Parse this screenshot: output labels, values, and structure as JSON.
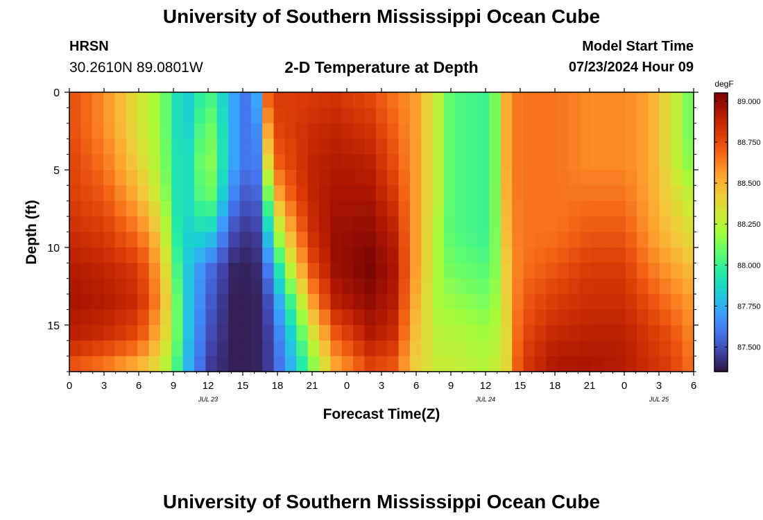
{
  "header": {
    "title": "University of Southern Mississippi Ocean Cube",
    "station": "HRSN",
    "coords": "30.2610N  89.0801W",
    "plot_title": "2-D Temperature at Depth",
    "start_label": "Model Start Time",
    "start_value": "07/23/2024 Hour 09"
  },
  "footer": {
    "title": "University of Southern Mississippi Ocean Cube"
  },
  "colors": {
    "colormap": [
      "#30123b",
      "#4145ab",
      "#4675ed",
      "#39a2fc",
      "#1bcfd4",
      "#24eca6",
      "#61fc6c",
      "#a4fc3b",
      "#d1e834",
      "#f3c63a",
      "#fe9b2d",
      "#f36315",
      "#d93806",
      "#b11901",
      "#7a0403"
    ]
  },
  "chart_data": {
    "type": "heatmap",
    "title": "2-D Temperature at Depth",
    "xlabel": "Forecast Time(Z)",
    "ylabel": "Depth (ft)",
    "x_ticks": [
      "0",
      "3",
      "6",
      "9",
      "12",
      "15",
      "18",
      "21",
      "0",
      "3",
      "6",
      "9",
      "12",
      "15",
      "18",
      "21",
      "0",
      "3",
      "6"
    ],
    "date_labels": [
      {
        "label": "JUL 23",
        "hour": 12
      },
      {
        "label": "JUL 24",
        "hour": 36
      },
      {
        "label": "JUL 25",
        "hour": 51
      }
    ],
    "x_range": [
      0,
      54
    ],
    "y_ticks": [
      "0",
      "5",
      "10",
      "15"
    ],
    "y_range": [
      0,
      18
    ],
    "colorbar": {
      "unit": "degF",
      "range": [
        87.35,
        89.05
      ],
      "ticks": [
        "89.000",
        "88.750",
        "88.500",
        "88.250",
        "88.000",
        "87.750",
        "87.500"
      ]
    },
    "depth_profiles": [
      {
        "hour": 0,
        "values": [
          88.75,
          88.75,
          88.78,
          88.8,
          88.85,
          88.92,
          88.95,
          88.9,
          88.7
        ]
      },
      {
        "hour": 3,
        "values": [
          88.6,
          88.6,
          88.65,
          88.72,
          88.8,
          88.88,
          88.92,
          88.85,
          88.6
        ]
      },
      {
        "hour": 6,
        "values": [
          88.35,
          88.35,
          88.4,
          88.5,
          88.65,
          88.8,
          88.85,
          88.75,
          88.45
        ]
      },
      {
        "hour": 8,
        "values": [
          88.15,
          88.15,
          88.18,
          88.25,
          88.4,
          88.5,
          88.55,
          88.45,
          88.3
        ]
      },
      {
        "hour": 9,
        "values": [
          87.95,
          87.95,
          87.95,
          87.95,
          88.0,
          88.1,
          88.2,
          88.2,
          88.1
        ]
      },
      {
        "hour": 10,
        "values": [
          87.8,
          87.8,
          87.85,
          87.85,
          87.85,
          87.85,
          87.85,
          87.85,
          87.8
        ]
      },
      {
        "hour": 12,
        "values": [
          88.05,
          88.15,
          88.2,
          88.15,
          87.9,
          87.6,
          87.55,
          87.5,
          87.45
        ]
      },
      {
        "hour": 14,
        "values": [
          87.75,
          87.75,
          87.75,
          87.65,
          87.5,
          87.4,
          87.38,
          87.38,
          87.38
        ]
      },
      {
        "hour": 16,
        "values": [
          87.5,
          87.5,
          87.5,
          87.45,
          87.4,
          87.38,
          87.38,
          87.38,
          87.38
        ]
      },
      {
        "hour": 16.5,
        "values": [
          88.1,
          87.9,
          87.8,
          87.7,
          87.55,
          87.45,
          87.4,
          87.4,
          87.4
        ]
      },
      {
        "hour": 17,
        "values": [
          88.7,
          88.5,
          88.3,
          88.0,
          87.75,
          87.55,
          87.45,
          87.42,
          87.42
        ]
      },
      {
        "hour": 18,
        "values": [
          88.8,
          88.78,
          88.7,
          88.5,
          88.2,
          87.9,
          87.7,
          87.6,
          87.55
        ]
      },
      {
        "hour": 19.5,
        "values": [
          88.8,
          88.8,
          88.8,
          88.75,
          88.6,
          88.4,
          88.1,
          87.9,
          87.8
        ]
      },
      {
        "hour": 21,
        "values": [
          88.8,
          88.85,
          88.88,
          88.88,
          88.85,
          88.75,
          88.55,
          88.3,
          88.1
        ]
      },
      {
        "hour": 23,
        "values": [
          88.82,
          88.88,
          88.92,
          88.95,
          88.98,
          88.98,
          88.9,
          88.7,
          88.5
        ]
      },
      {
        "hour": 26,
        "values": [
          88.75,
          88.82,
          88.9,
          88.95,
          89.0,
          89.05,
          89.0,
          88.92,
          88.75
        ]
      },
      {
        "hour": 28,
        "values": [
          88.65,
          88.7,
          88.75,
          88.82,
          88.9,
          88.95,
          88.92,
          88.85,
          88.7
        ]
      },
      {
        "hour": 30,
        "values": [
          88.55,
          88.55,
          88.55,
          88.55,
          88.55,
          88.55,
          88.5,
          88.45,
          88.4
        ]
      },
      {
        "hour": 32,
        "values": [
          88.25,
          88.25,
          88.25,
          88.25,
          88.2,
          88.2,
          88.2,
          88.25,
          88.3
        ]
      },
      {
        "hour": 33,
        "values": [
          88.05,
          88.05,
          88.05,
          88.05,
          88.05,
          88.1,
          88.18,
          88.25,
          88.3
        ]
      },
      {
        "hour": 36,
        "values": [
          88.0,
          88.0,
          88.0,
          88.0,
          88.0,
          88.05,
          88.12,
          88.2,
          88.25
        ]
      },
      {
        "hour": 37,
        "values": [
          88.15,
          88.15,
          88.15,
          88.15,
          88.15,
          88.15,
          88.2,
          88.25,
          88.3
        ]
      },
      {
        "hour": 38,
        "values": [
          88.6,
          88.6,
          88.6,
          88.58,
          88.55,
          88.5,
          88.45,
          88.4,
          88.4
        ]
      },
      {
        "hour": 39,
        "values": [
          88.65,
          88.65,
          88.65,
          88.65,
          88.65,
          88.65,
          88.7,
          88.75,
          88.8
        ]
      },
      {
        "hour": 42,
        "values": [
          88.65,
          88.65,
          88.65,
          88.65,
          88.65,
          88.72,
          88.8,
          88.88,
          88.95
        ]
      },
      {
        "hour": 45,
        "values": [
          88.6,
          88.6,
          88.6,
          88.65,
          88.72,
          88.8,
          88.85,
          88.9,
          88.95
        ]
      },
      {
        "hour": 48,
        "values": [
          88.6,
          88.6,
          88.6,
          88.65,
          88.72,
          88.8,
          88.85,
          88.9,
          88.92
        ]
      },
      {
        "hour": 50,
        "values": [
          88.55,
          88.55,
          88.55,
          88.55,
          88.58,
          88.65,
          88.75,
          88.82,
          88.85
        ]
      },
      {
        "hour": 52,
        "values": [
          88.35,
          88.35,
          88.35,
          88.4,
          88.45,
          88.55,
          88.65,
          88.75,
          88.8
        ]
      },
      {
        "hour": 54,
        "values": [
          88.05,
          88.05,
          88.1,
          88.25,
          88.35,
          88.45,
          88.55,
          88.6,
          88.65
        ]
      }
    ],
    "depth_levels": [
      0,
      2.25,
      4.5,
      6.75,
      9,
      11.25,
      13.5,
      15.75,
      18
    ]
  }
}
